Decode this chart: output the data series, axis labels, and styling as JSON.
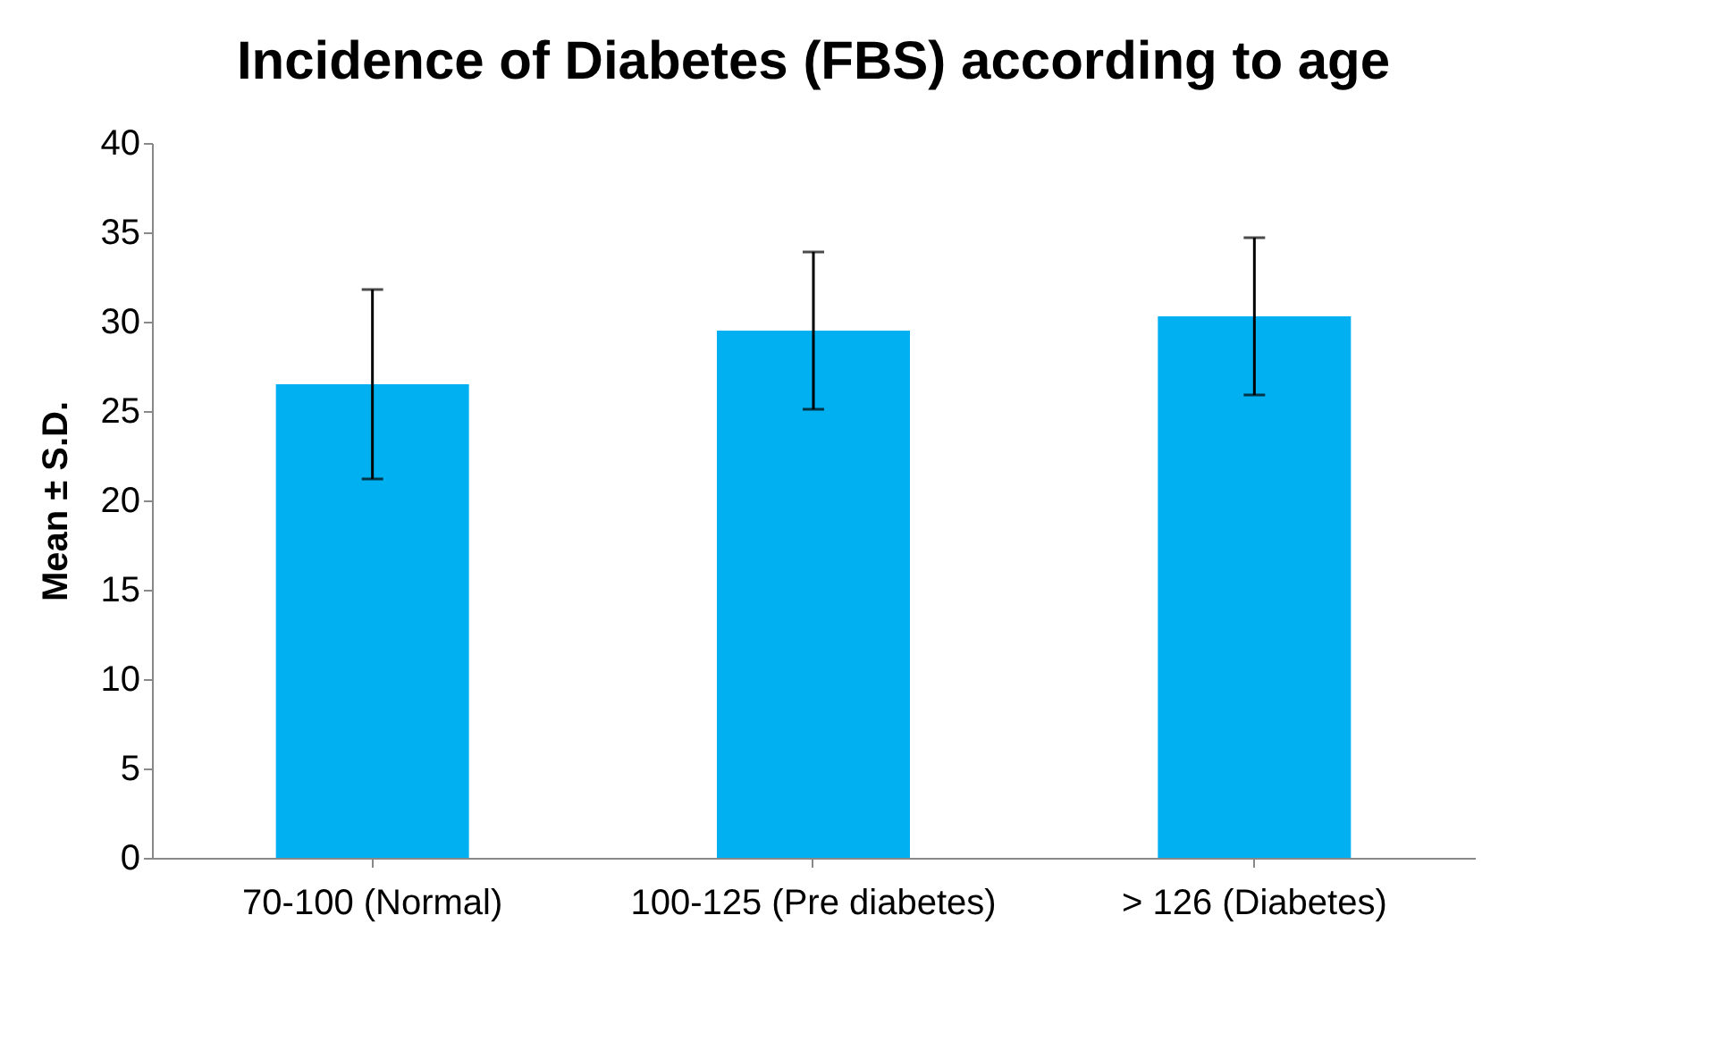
{
  "chart_data": {
    "type": "bar",
    "title": "Incidence of Diabetes (FBS) according to age",
    "ylabel": "Mean ± S.D.",
    "categories": [
      "70-100 (Normal)",
      "100-125 (Pre diabetes)",
      "> 126 (Diabetes)"
    ],
    "values": [
      26.5,
      29.5,
      30.3
    ],
    "errors": [
      5.3,
      4.4,
      4.4
    ],
    "color": "#00b0f0",
    "ylim": [
      0,
      40
    ],
    "yticks": [
      0,
      5,
      10,
      15,
      20,
      25,
      30,
      35,
      40
    ],
    "grid": false
  }
}
